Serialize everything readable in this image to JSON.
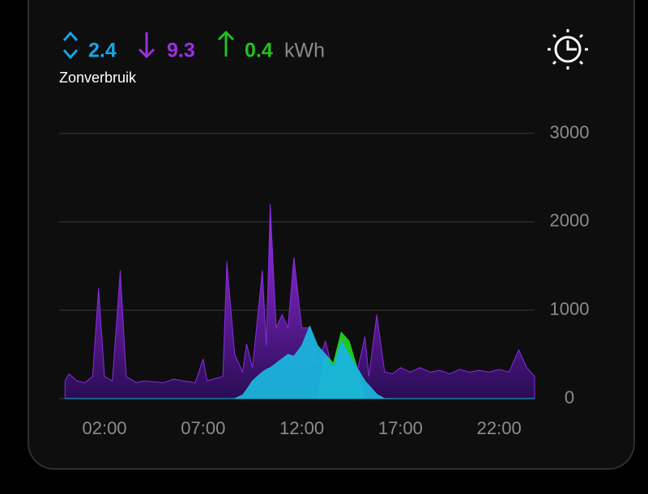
{
  "header": {
    "self_consumption": 2.4,
    "import": 9.3,
    "export": 0.4,
    "unit": "kWh",
    "label": "Zonverbruik"
  },
  "chart_data": {
    "type": "area",
    "x": [
      0,
      0.2,
      0.6,
      1.0,
      1.4,
      1.7,
      2.0,
      2.4,
      2.8,
      3.1,
      3.6,
      4.0,
      5.0,
      5.5,
      6.0,
      6.6,
      7.0,
      7.2,
      8.0,
      8.2,
      8.6,
      9.0,
      9.2,
      9.5,
      10.0,
      10.2,
      10.4,
      10.7,
      11.0,
      11.3,
      11.6,
      12.0,
      12.4,
      12.8,
      13.2,
      13.6,
      14.0,
      14.4,
      14.8,
      15.2,
      15.4,
      15.8,
      16.2,
      16.6,
      17.0,
      17.5,
      18.0,
      18.5,
      19.0,
      19.5,
      20.0,
      20.5,
      21.0,
      21.5,
      22.0,
      22.5,
      23.0,
      23.4,
      23.8
    ],
    "series": [
      {
        "color": "#8a2be2",
        "values": [
          200,
          280,
          200,
          180,
          250,
          1250,
          250,
          200,
          1450,
          250,
          180,
          200,
          180,
          220,
          200,
          180,
          450,
          200,
          250,
          1550,
          500,
          300,
          620,
          350,
          1450,
          600,
          2200,
          800,
          950,
          800,
          1600,
          800,
          800,
          400,
          650,
          300,
          400,
          400,
          300,
          700,
          250,
          950,
          300,
          280,
          350,
          300,
          350,
          300,
          320,
          280,
          330,
          300,
          320,
          300,
          330,
          300,
          550,
          350,
          250
        ]
      },
      {
        "color": "#22d022",
        "values": [
          0,
          0,
          0,
          0,
          0,
          0,
          0,
          0,
          0,
          0,
          0,
          0,
          0,
          0,
          0,
          0,
          0,
          0,
          0,
          0,
          0,
          0,
          0,
          0,
          0,
          0,
          0,
          0,
          0,
          0,
          0,
          0,
          0,
          0,
          500,
          400,
          750,
          650,
          350,
          0,
          0,
          0,
          0,
          0,
          0,
          0,
          0,
          0,
          0,
          0,
          0,
          0,
          0,
          0,
          0,
          0,
          0,
          0,
          0
        ]
      },
      {
        "color": "#1ab4dc",
        "values": [
          0,
          0,
          0,
          0,
          0,
          0,
          0,
          0,
          0,
          0,
          0,
          0,
          0,
          0,
          0,
          0,
          0,
          0,
          0,
          0,
          0,
          40,
          100,
          200,
          300,
          330,
          350,
          400,
          450,
          500,
          480,
          600,
          820,
          600,
          500,
          350,
          650,
          500,
          350,
          200,
          150,
          50,
          0,
          0,
          0,
          0,
          0,
          0,
          0,
          0,
          0,
          0,
          0,
          0,
          0,
          0,
          0,
          0,
          0
        ]
      }
    ],
    "xlim": [
      -0.3,
      23.8
    ],
    "xticks": [
      {
        "value": 2,
        "label": "02:00"
      },
      {
        "value": 7,
        "label": "07:00"
      },
      {
        "value": 12,
        "label": "12:00"
      },
      {
        "value": 17,
        "label": "17:00"
      },
      {
        "value": 22,
        "label": "22:00"
      }
    ],
    "ylim": [
      0,
      3000
    ],
    "yticks": [
      0,
      1000,
      2000,
      3000
    ],
    "grid": true
  }
}
